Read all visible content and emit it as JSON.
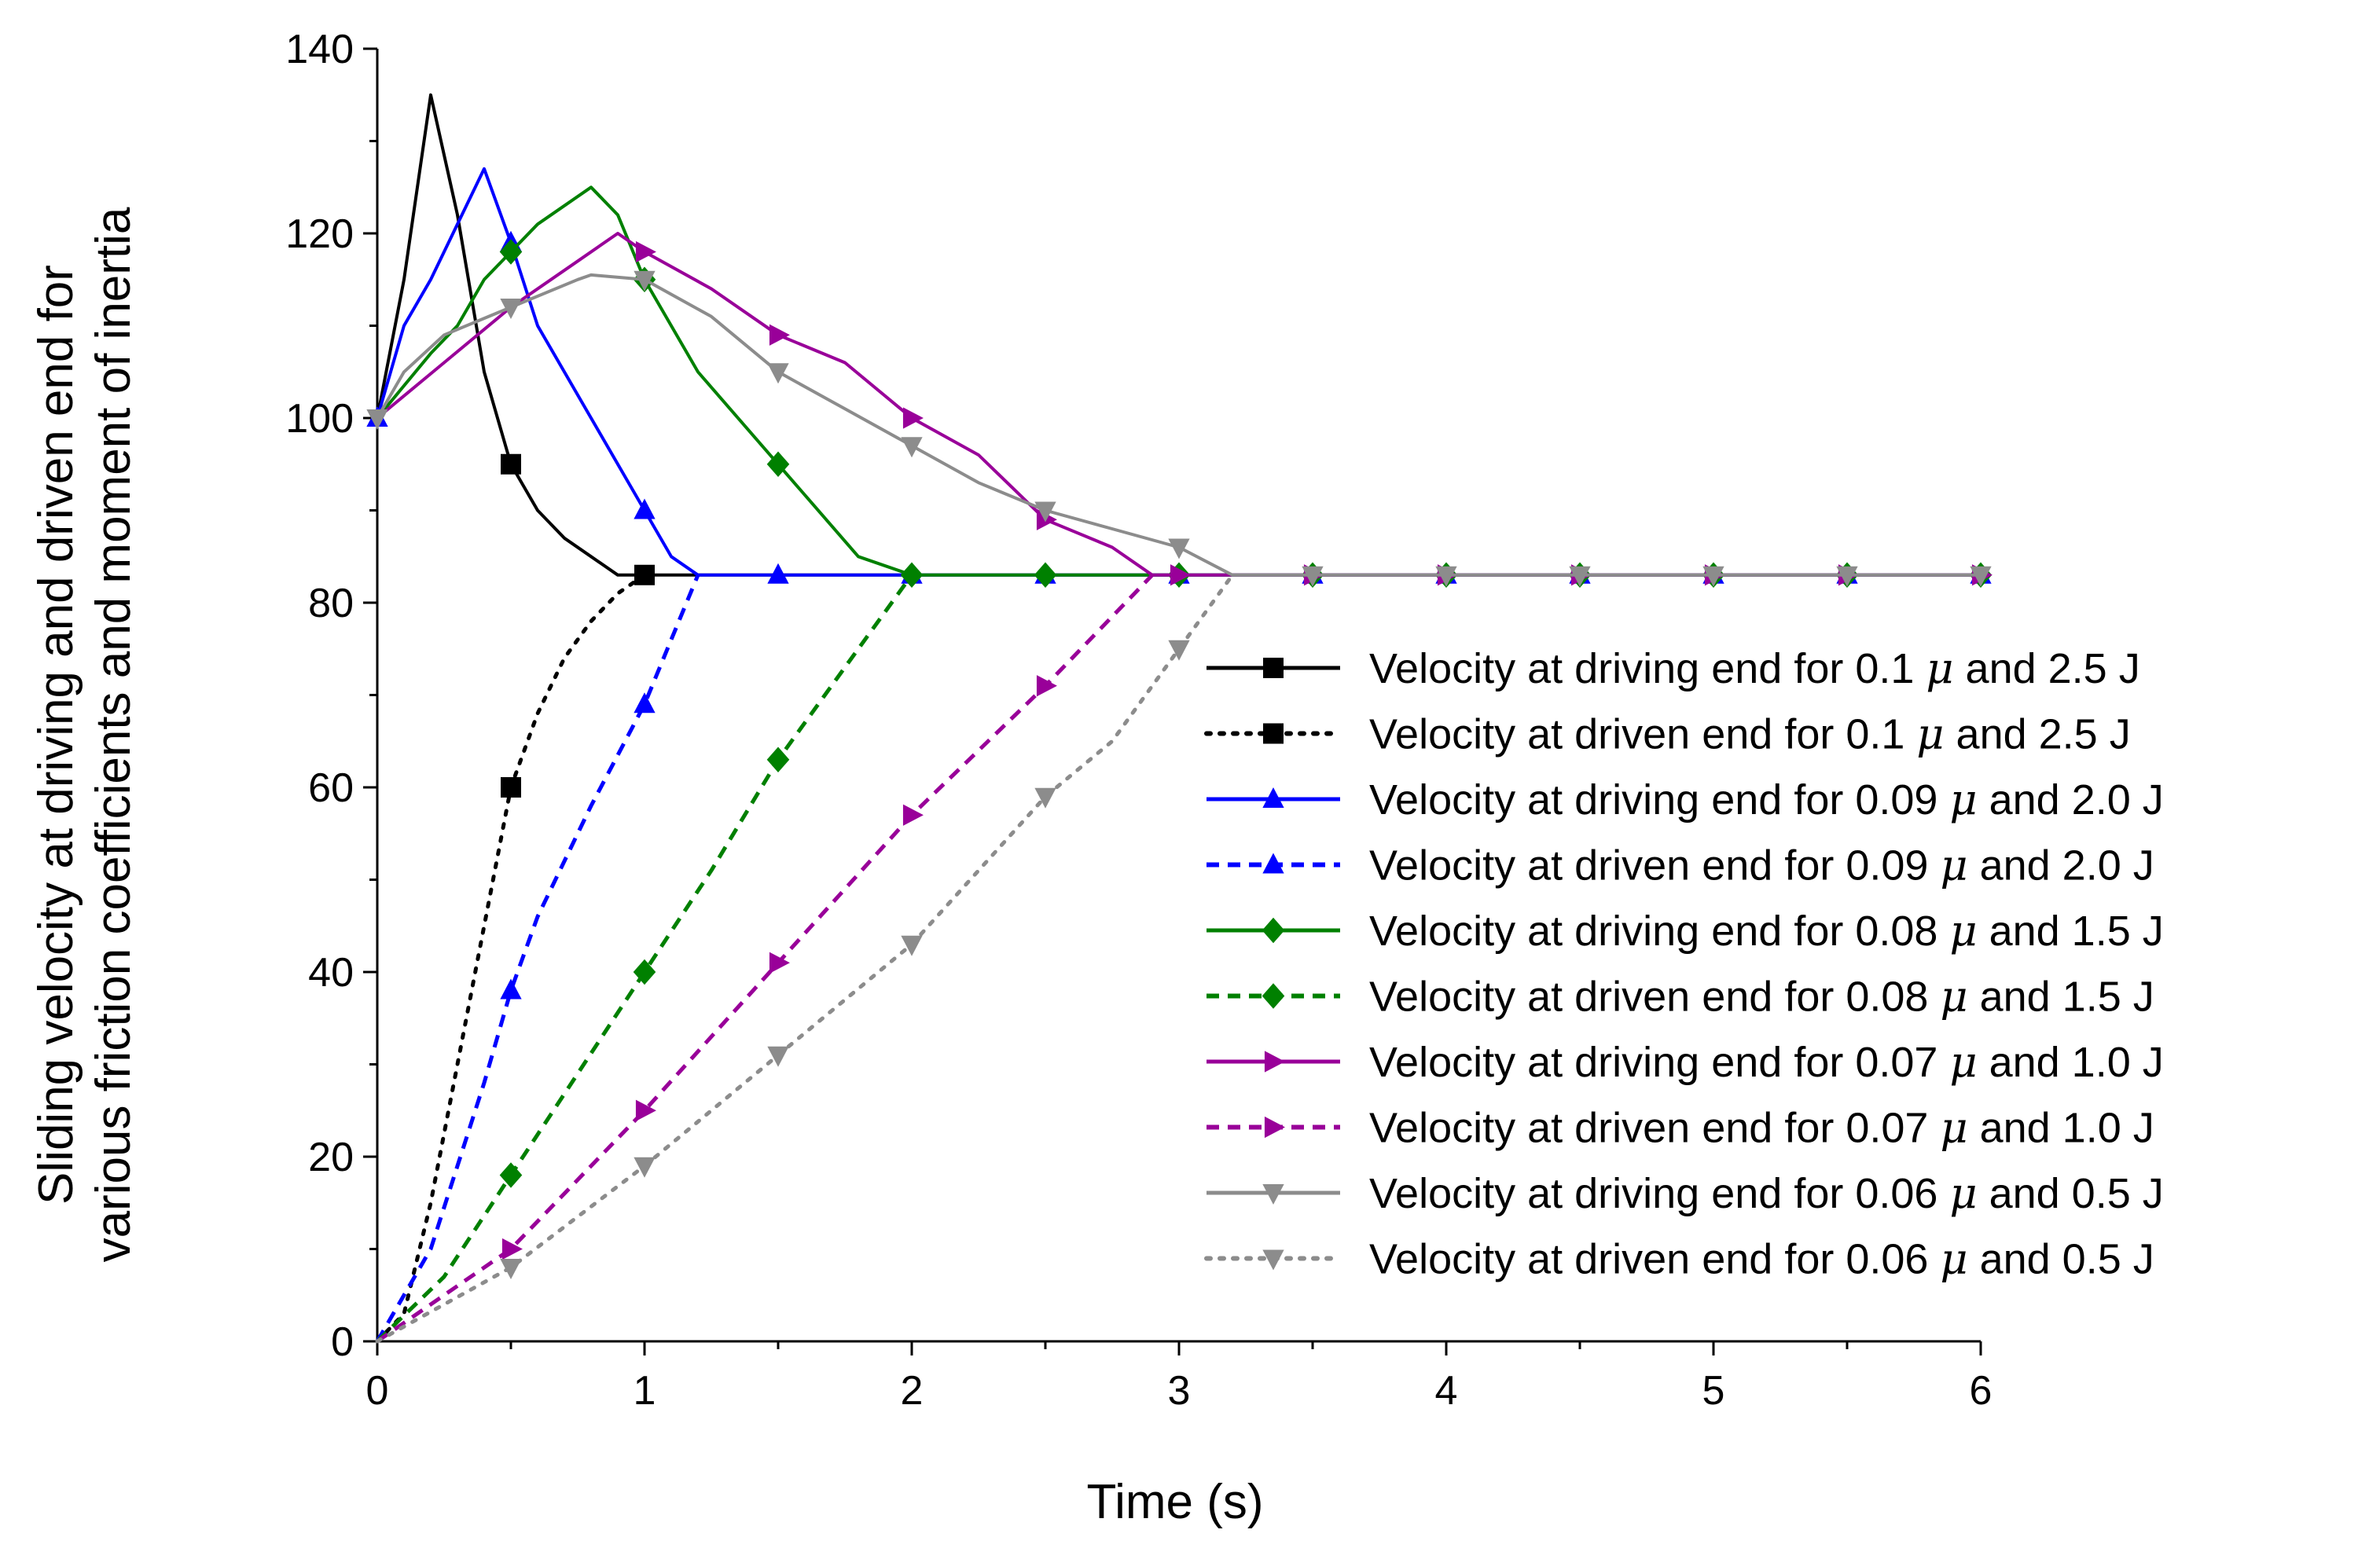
{
  "chart_data": {
    "type": "line",
    "title": "",
    "xlabel": "Time (s)",
    "ylabel_lines": [
      "Sliding velocity at driving and driven end for",
      "various friction coefficients and moment of inertia"
    ],
    "xlim": [
      0,
      6
    ],
    "ylim": [
      0,
      140
    ],
    "xticks": [
      "0",
      "1",
      "2",
      "3",
      "4",
      "5",
      "6"
    ],
    "yticks": [
      "0",
      "20",
      "40",
      "60",
      "80",
      "100",
      "120",
      "140"
    ],
    "grid": false,
    "legend_position": "right",
    "series": [
      {
        "name": "Velocity at driving end for 0.1 μ and 2.5 J",
        "legend_prefix": "Velocity at driving end for 0.1 ",
        "legend_suffix": " and 2.5 J",
        "color": "#000000",
        "dash": "solid",
        "marker": "square",
        "x": [
          0,
          0.1,
          0.2,
          0.3,
          0.4,
          0.5,
          0.6,
          0.7,
          0.8,
          0.9,
          1.0,
          1.5,
          2.0,
          2.5,
          3.0,
          3.5,
          4.0,
          4.5,
          5.0,
          5.5,
          6.0
        ],
        "y": [
          100,
          115,
          135,
          122,
          105,
          95,
          90,
          87,
          85,
          83,
          83,
          83,
          83,
          83,
          83,
          83,
          83,
          83,
          83,
          83,
          83
        ],
        "marker_x": [
          0.5,
          1.0
        ]
      },
      {
        "name": "Velocity at driven end for 0.1 μ and 2.5 J",
        "legend_prefix": "Velocity at driven end for 0.1 ",
        "legend_suffix": " and 2.5 J",
        "color": "#000000",
        "dash": "dotted",
        "marker": "square",
        "x": [
          0,
          0.1,
          0.2,
          0.3,
          0.4,
          0.5,
          0.6,
          0.7,
          0.8,
          0.9,
          1.0
        ],
        "y": [
          0,
          3,
          15,
          30,
          45,
          60,
          68,
          74,
          78,
          81,
          83
        ],
        "marker_x": [
          0.5
        ]
      },
      {
        "name": "Velocity at driving end for 0.09 μ and 2.0 J",
        "legend_prefix": "Velocity at driving end for 0.09 ",
        "legend_suffix": " and 2.0 J",
        "color": "#0000ff",
        "dash": "solid",
        "marker": "triangle-up",
        "x": [
          0,
          0.1,
          0.2,
          0.3,
          0.4,
          0.5,
          0.6,
          0.7,
          0.8,
          0.9,
          1.0,
          1.1,
          1.2,
          1.5,
          2.0,
          2.5,
          3.0,
          3.5,
          4.0,
          4.5,
          5.0,
          5.5,
          6.0
        ],
        "y": [
          100,
          110,
          115,
          121,
          127,
          119,
          110,
          105,
          100,
          95,
          90,
          85,
          83,
          83,
          83,
          83,
          83,
          83,
          83,
          83,
          83,
          83,
          83
        ],
        "marker_x": [
          0,
          0.5,
          1.0,
          1.5,
          2.0,
          2.5,
          3.0,
          3.5,
          4.0,
          4.5,
          5.0,
          5.5,
          6.0
        ]
      },
      {
        "name": "Velocity at driven end for 0.09 μ and 2.0 J",
        "legend_prefix": "Velocity at driven end for 0.09 ",
        "legend_suffix": " and 2.0 J",
        "color": "#0000ff",
        "dash": "dashed",
        "marker": "triangle-up",
        "x": [
          0,
          0.2,
          0.4,
          0.5,
          0.6,
          0.8,
          1.0,
          1.1,
          1.2
        ],
        "y": [
          0,
          10,
          28,
          38,
          46,
          58,
          69,
          76,
          83
        ],
        "marker_x": [
          0.5,
          1.0
        ]
      },
      {
        "name": "Velocity at driving end for 0.08 μ and 1.5 J",
        "legend_prefix": "Velocity at driving end for 0.08 ",
        "legend_suffix": " and 1.5 J",
        "color": "#008000",
        "dash": "solid",
        "marker": "diamond",
        "x": [
          0,
          0.2,
          0.3,
          0.4,
          0.5,
          0.6,
          0.7,
          0.8,
          0.9,
          1.0,
          1.2,
          1.5,
          1.8,
          2.0,
          2.5,
          3.0,
          3.5,
          4.0,
          4.5,
          5.0,
          5.5,
          6.0
        ],
        "y": [
          100,
          107,
          110,
          115,
          118,
          121,
          123,
          125,
          122,
          115,
          105,
          95,
          85,
          83,
          83,
          83,
          83,
          83,
          83,
          83,
          83,
          83
        ],
        "marker_x": [
          0.5,
          1.0,
          1.5,
          2.0,
          2.5,
          3.0,
          3.5,
          4.0,
          4.5,
          5.0,
          5.5,
          6.0
        ]
      },
      {
        "name": "Velocity at driven end for 0.08 μ and 1.5 J",
        "legend_prefix": "Velocity at driven end for 0.08 ",
        "legend_suffix": " and 1.5 J",
        "color": "#008000",
        "dash": "dashed",
        "marker": "diamond",
        "x": [
          0,
          0.25,
          0.5,
          0.75,
          1.0,
          1.25,
          1.5,
          1.75,
          2.0
        ],
        "y": [
          0,
          7,
          18,
          29,
          40,
          51,
          63,
          73,
          83
        ],
        "marker_x": [
          0.5,
          1.0,
          1.5
        ]
      },
      {
        "name": "Velocity at driving end for 0.07 μ and 1.0 J",
        "legend_prefix": "Velocity at driving end for 0.07 ",
        "legend_suffix": " and 1.0 J",
        "color": "#990099",
        "dash": "solid",
        "marker": "triangle-right",
        "x": [
          0,
          0.25,
          0.5,
          0.75,
          0.9,
          1.0,
          1.25,
          1.5,
          1.75,
          2.0,
          2.25,
          2.5,
          2.75,
          2.9,
          3.0,
          3.5,
          4.0,
          4.5,
          5.0,
          5.5,
          6.0
        ],
        "y": [
          100,
          106,
          112,
          117,
          120,
          118,
          114,
          109,
          106,
          100,
          96,
          89,
          86,
          83,
          83,
          83,
          83,
          83,
          83,
          83,
          83
        ],
        "marker_x": [
          1.0,
          1.5,
          2.0,
          2.5,
          3.0,
          3.5,
          4.0,
          4.5,
          5.0,
          5.5,
          6.0
        ]
      },
      {
        "name": "Velocity at driven end for 0.07 μ and 1.0 J",
        "legend_prefix": "Velocity at driven end for 0.07 ",
        "legend_suffix": " and 1.0 J",
        "color": "#990099",
        "dash": "dashed",
        "marker": "triangle-right",
        "x": [
          0,
          0.5,
          1.0,
          1.5,
          2.0,
          2.5,
          2.9
        ],
        "y": [
          0,
          10,
          25,
          41,
          57,
          71,
          83
        ],
        "marker_x": [
          0.5,
          1.0,
          1.5,
          2.0,
          2.5
        ]
      },
      {
        "name": "Velocity at driving end for 0.06 μ and 0.5 J",
        "legend_prefix": "Velocity at driving end for 0.06 ",
        "legend_suffix": " and 0.5 J",
        "color": "#8c8c8c",
        "dash": "solid",
        "marker": "triangle-down",
        "x": [
          0,
          0.1,
          0.25,
          0.5,
          0.75,
          0.8,
          1.0,
          1.25,
          1.5,
          1.75,
          2.0,
          2.25,
          2.5,
          2.75,
          3.0,
          3.2,
          3.5,
          4.0,
          4.5,
          5.0,
          5.5,
          6.0
        ],
        "y": [
          100,
          105,
          109,
          112,
          115,
          115.5,
          115,
          111,
          105,
          101,
          97,
          93,
          90,
          88,
          86,
          83,
          83,
          83,
          83,
          83,
          83,
          83
        ],
        "marker_x": [
          0,
          0.5,
          1.0,
          1.5,
          2.0,
          2.5,
          3.0,
          3.5,
          4.0,
          4.5,
          5.0,
          5.5,
          6.0
        ]
      },
      {
        "name": "Velocity at driven end for 0.06 μ and 0.5 J",
        "legend_prefix": "Velocity at driven end for 0.06 ",
        "legend_suffix": " and 0.5 J",
        "color": "#8c8c8c",
        "dash": "dotted",
        "marker": "triangle-down",
        "x": [
          0,
          0.25,
          0.5,
          1.0,
          1.5,
          2.0,
          2.5,
          2.75,
          3.0,
          3.2
        ],
        "y": [
          0,
          4,
          8,
          19,
          31,
          43,
          59,
          65,
          75,
          83
        ],
        "marker_x": [
          0.5,
          1.0,
          1.5,
          2.0,
          2.5,
          3.0
        ]
      }
    ]
  }
}
